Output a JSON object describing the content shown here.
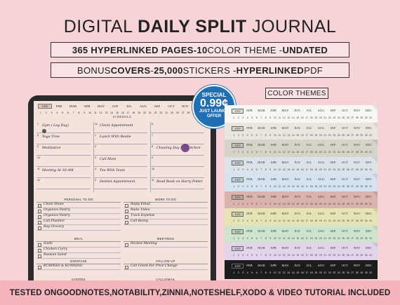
{
  "title": {
    "pre": "DIGITAL ",
    "bold": "DAILY SPLIT",
    "post": " JOURNAL"
  },
  "banner1": {
    "p1": "365 HYPERLINKED PAGES- ",
    "b1": "10",
    "p2": " COLOR THEME - ",
    "b2": "UNDATED"
  },
  "banner2": {
    "p1": "BONUS ",
    "b1": "COVERS",
    "p2": " -  ",
    "b2": "25,000",
    "p3": " STICKERS - ",
    "b3": "HYPERLINKED",
    "p4": " PDF"
  },
  "badge": {
    "line1": "SPECIAL",
    "line2": "0.99¢",
    "line3": "JUST LAUNCH",
    "line4": "OFFER"
  },
  "color_themes_label": "COLOR THEMES",
  "months": [
    "JAN",
    "FEB",
    "MAR",
    "APR",
    "MAY",
    "JUN",
    "JUL",
    "AUG",
    "SEP",
    "OCT",
    "NOV",
    "DEC"
  ],
  "tablet_months": [
    "JAN",
    "FEB",
    "MAR",
    "APR",
    "MAY",
    "JUN",
    "JUL",
    "AUG",
    "SEP",
    "OCT",
    "NOV"
  ],
  "days": [
    "1",
    "2",
    "3",
    "4",
    "5",
    "6",
    "7",
    "8",
    "9",
    "10",
    "11",
    "12",
    "13",
    "14",
    "15",
    "16",
    "17",
    "18",
    "19",
    "20",
    "21",
    "22",
    "23",
    "24",
    "25",
    "26",
    "27",
    "28",
    "29",
    "30",
    "31"
  ],
  "journal": {
    "schedule_label": "SCHEDULE",
    "col1": [
      {
        "n": "7",
        "t": "Gym ( Leg Day)"
      },
      {
        "n": "8",
        "t": "Yoga Time"
      },
      {
        "n": "9",
        "t": "Meditation"
      },
      {
        "n": "10",
        "t": ""
      },
      {
        "n": "11",
        "t": "Meeting At 10 AM"
      },
      {
        "n": "12",
        "t": ""
      }
    ],
    "col2": [
      {
        "n": "12",
        "t": "Client Appointment"
      },
      {
        "n": "1",
        "t": "Lunch With Bestie"
      },
      {
        "n": "2",
        "t": ""
      },
      {
        "n": "3",
        "t": "Call Mom"
      },
      {
        "n": "4",
        "t": "Tea With Team"
      },
      {
        "n": "5",
        "t": "Dentist Appointment"
      }
    ],
    "col3": [
      {
        "n": "6",
        "t": ""
      },
      {
        "n": "7",
        "t": ""
      },
      {
        "n": "8",
        "t": "Cleaning Day For Kitchen"
      },
      {
        "n": "9",
        "t": ""
      },
      {
        "n": "10",
        "t": ""
      },
      {
        "n": "11",
        "t": "Read Book on Harry Potter"
      }
    ],
    "personal_todo_label": "PERSONAL TO DO",
    "work_todo_label": "WORK TO DO",
    "personal_todo": [
      "Clean Shoes",
      "Organize Pantry",
      "Organize Pantry",
      "Call Plumber",
      "Buy Grocery"
    ],
    "work_todo": [
      "Reply Email",
      "Make Video",
      "Track Expense",
      "Call Benny"
    ],
    "meal_label": "MEAL",
    "meetings_label": "MEETINGS",
    "meal": [
      "Sushi",
      "Chicken Curry",
      "Russian Salad"
    ],
    "meetings": [
      "Review Meeting"
    ],
    "exercise_label": "EXERCISE",
    "followup_label": "FOLLOW UP",
    "exercise": [
      "BURPEES & RUNNING"
    ],
    "followup": [
      "Call Client For Price Change"
    ],
    "chores_label": "CHORES",
    "calls_label": "CALLS/MAIL"
  },
  "themes": [
    {
      "bg": "#f8f6f2",
      "fg": "#333"
    },
    {
      "bg": "#ebe6dd",
      "fg": "#333"
    },
    {
      "bg": "#d6d4c8",
      "fg": "#333"
    },
    {
      "bg": "#dce3e8",
      "fg": "#333"
    },
    {
      "bg": "#d4e3ef",
      "fg": "#333"
    },
    {
      "bg": "#d9b3ac",
      "fg": "#333"
    },
    {
      "bg": "#e5e4b5",
      "fg": "#333"
    },
    {
      "bg": "#cfe4cd",
      "fg": "#333"
    },
    {
      "bg": "#e2d4ea",
      "fg": "#333"
    },
    {
      "bg": "#1c1c1c",
      "fg": "#eee"
    }
  ],
  "footer": {
    "p1": "TESTED ON ",
    "b1": "GOODNOTES,NOTABILITY,ZINNIA,NOTESHELF,XODO & VIDEO TUTORIAL INCLUDED"
  }
}
